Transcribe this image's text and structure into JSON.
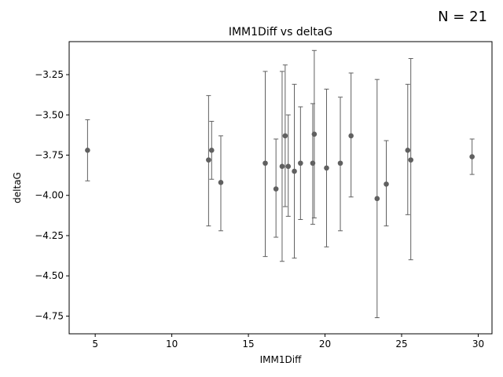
{
  "chart_data": {
    "type": "scatter",
    "title": "IMM1Diff vs deltaG",
    "xlabel": "IMM1Diff",
    "ylabel": "deltaG",
    "annotation": "N = 21",
    "xlim": [
      3.3,
      30.9
    ],
    "ylim": [
      -4.86,
      -3.045
    ],
    "xticks": [
      5,
      10,
      15,
      20,
      25,
      30
    ],
    "xtick_labels": [
      "5",
      "10",
      "15",
      "20",
      "25",
      "30"
    ],
    "yticks": [
      -4.75,
      -4.5,
      -4.25,
      -4.0,
      -3.75,
      -3.5,
      -3.25
    ],
    "ytick_labels": [
      "−4.75",
      "−4.50",
      "−4.25",
      "−4.00",
      "−3.75",
      "−3.50",
      "−3.25"
    ],
    "grid": false,
    "marker_color": "#606060",
    "points": [
      {
        "x": 4.5,
        "y": -3.72,
        "ylo": -3.91,
        "yhi": -3.53
      },
      {
        "x": 12.4,
        "y": -3.78,
        "ylo": -4.19,
        "yhi": -3.38
      },
      {
        "x": 12.6,
        "y": -3.72,
        "ylo": -3.9,
        "yhi": -3.54
      },
      {
        "x": 13.2,
        "y": -3.92,
        "ylo": -4.22,
        "yhi": -3.63
      },
      {
        "x": 16.1,
        "y": -3.8,
        "ylo": -4.38,
        "yhi": -3.23
      },
      {
        "x": 16.8,
        "y": -3.96,
        "ylo": -4.26,
        "yhi": -3.65
      },
      {
        "x": 17.2,
        "y": -3.82,
        "ylo": -4.41,
        "yhi": -3.23
      },
      {
        "x": 17.4,
        "y": -3.63,
        "ylo": -4.07,
        "yhi": -3.19
      },
      {
        "x": 17.6,
        "y": -3.82,
        "ylo": -4.13,
        "yhi": -3.5
      },
      {
        "x": 18.0,
        "y": -3.85,
        "ylo": -4.39,
        "yhi": -3.31
      },
      {
        "x": 18.4,
        "y": -3.8,
        "ylo": -4.15,
        "yhi": -3.45
      },
      {
        "x": 19.2,
        "y": -3.8,
        "ylo": -4.18,
        "yhi": -3.43
      },
      {
        "x": 19.3,
        "y": -3.62,
        "ylo": -4.14,
        "yhi": -3.1
      },
      {
        "x": 20.1,
        "y": -3.83,
        "ylo": -4.32,
        "yhi": -3.34
      },
      {
        "x": 21.0,
        "y": -3.8,
        "ylo": -4.22,
        "yhi": -3.39
      },
      {
        "x": 21.7,
        "y": -3.63,
        "ylo": -4.01,
        "yhi": -3.24
      },
      {
        "x": 23.4,
        "y": -4.02,
        "ylo": -4.76,
        "yhi": -3.28
      },
      {
        "x": 24.0,
        "y": -3.93,
        "ylo": -4.19,
        "yhi": -3.66
      },
      {
        "x": 25.4,
        "y": -3.72,
        "ylo": -4.12,
        "yhi": -3.31
      },
      {
        "x": 25.6,
        "y": -3.78,
        "ylo": -4.4,
        "yhi": -3.15
      },
      {
        "x": 29.6,
        "y": -3.76,
        "ylo": -3.87,
        "yhi": -3.65
      }
    ]
  }
}
